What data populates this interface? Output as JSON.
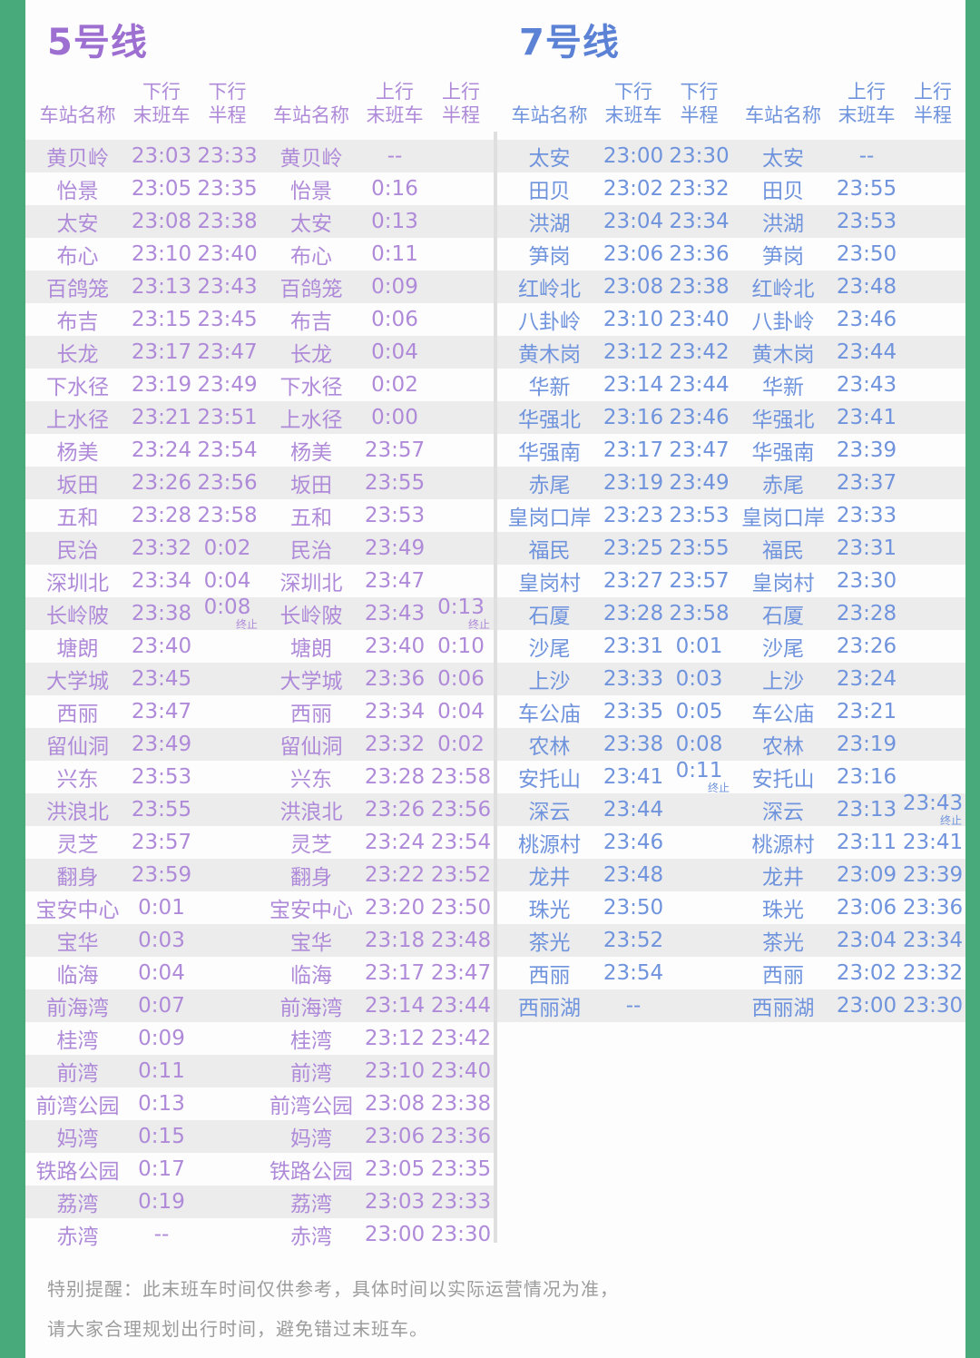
{
  "colors": {
    "frame_green": "#48a97a",
    "line5_title": "#9d6fd1",
    "line5_text": "#af8ad9",
    "line7_title": "#5c82d6",
    "line7_text": "#6f93dc",
    "stripe_gray": "#ececec",
    "divider_gray": "#dfdfdf",
    "footer_gray": "#9c9c9c"
  },
  "lines": [
    {
      "title": "5号线",
      "headers": {
        "station": "车站名称",
        "down": "下行",
        "up": "上行",
        "last": "末班车",
        "half": "半程"
      },
      "down_rows": [
        {
          "station": "黄贝岭",
          "last": "23:03",
          "half": "23:33"
        },
        {
          "station": "怡景",
          "last": "23:05",
          "half": "23:35"
        },
        {
          "station": "太安",
          "last": "23:08",
          "half": "23:38"
        },
        {
          "station": "布心",
          "last": "23:10",
          "half": "23:40"
        },
        {
          "station": "百鸽笼",
          "last": "23:13",
          "half": "23:43"
        },
        {
          "station": "布吉",
          "last": "23:15",
          "half": "23:45"
        },
        {
          "station": "长龙",
          "last": "23:17",
          "half": "23:47"
        },
        {
          "station": "下水径",
          "last": "23:19",
          "half": "23:49"
        },
        {
          "station": "上水径",
          "last": "23:21",
          "half": "23:51"
        },
        {
          "station": "杨美",
          "last": "23:24",
          "half": "23:54"
        },
        {
          "station": "坂田",
          "last": "23:26",
          "half": "23:56"
        },
        {
          "station": "五和",
          "last": "23:28",
          "half": "23:58"
        },
        {
          "station": "民治",
          "last": "23:32",
          "half": "0:02"
        },
        {
          "station": "深圳北",
          "last": "23:34",
          "half": "0:04"
        },
        {
          "station": "长岭陂",
          "last": "23:38",
          "half": "0:08",
          "half_note": "终止"
        },
        {
          "station": "塘朗",
          "last": "23:40",
          "half": ""
        },
        {
          "station": "大学城",
          "last": "23:45",
          "half": ""
        },
        {
          "station": "西丽",
          "last": "23:47",
          "half": ""
        },
        {
          "station": "留仙洞",
          "last": "23:49",
          "half": ""
        },
        {
          "station": "兴东",
          "last": "23:53",
          "half": ""
        },
        {
          "station": "洪浪北",
          "last": "23:55",
          "half": ""
        },
        {
          "station": "灵芝",
          "last": "23:57",
          "half": ""
        },
        {
          "station": "翻身",
          "last": "23:59",
          "half": ""
        },
        {
          "station": "宝安中心",
          "last": "0:01",
          "half": ""
        },
        {
          "station": "宝华",
          "last": "0:03",
          "half": ""
        },
        {
          "station": "临海",
          "last": "0:04",
          "half": ""
        },
        {
          "station": "前海湾",
          "last": "0:07",
          "half": ""
        },
        {
          "station": "桂湾",
          "last": "0:09",
          "half": ""
        },
        {
          "station": "前湾",
          "last": "0:11",
          "half": ""
        },
        {
          "station": "前湾公园",
          "last": "0:13",
          "half": ""
        },
        {
          "station": "妈湾",
          "last": "0:15",
          "half": ""
        },
        {
          "station": "铁路公园",
          "last": "0:17",
          "half": ""
        },
        {
          "station": "荔湾",
          "last": "0:19",
          "half": ""
        },
        {
          "station": "赤湾",
          "last": "--",
          "half": ""
        }
      ],
      "up_rows": [
        {
          "station": "黄贝岭",
          "last": "--",
          "half": ""
        },
        {
          "station": "怡景",
          "last": "0:16",
          "half": ""
        },
        {
          "station": "太安",
          "last": "0:13",
          "half": ""
        },
        {
          "station": "布心",
          "last": "0:11",
          "half": ""
        },
        {
          "station": "百鸽笼",
          "last": "0:09",
          "half": ""
        },
        {
          "station": "布吉",
          "last": "0:06",
          "half": ""
        },
        {
          "station": "长龙",
          "last": "0:04",
          "half": ""
        },
        {
          "station": "下水径",
          "last": "0:02",
          "half": ""
        },
        {
          "station": "上水径",
          "last": "0:00",
          "half": ""
        },
        {
          "station": "杨美",
          "last": "23:57",
          "half": ""
        },
        {
          "station": "坂田",
          "last": "23:55",
          "half": ""
        },
        {
          "station": "五和",
          "last": "23:53",
          "half": ""
        },
        {
          "station": "民治",
          "last": "23:49",
          "half": ""
        },
        {
          "station": "深圳北",
          "last": "23:47",
          "half": ""
        },
        {
          "station": "长岭陂",
          "last": "23:43",
          "half": "0:13",
          "half_note": "终止"
        },
        {
          "station": "塘朗",
          "last": "23:40",
          "half": "0:10"
        },
        {
          "station": "大学城",
          "last": "23:36",
          "half": "0:06"
        },
        {
          "station": "西丽",
          "last": "23:34",
          "half": "0:04"
        },
        {
          "station": "留仙洞",
          "last": "23:32",
          "half": "0:02"
        },
        {
          "station": "兴东",
          "last": "23:28",
          "half": "23:58"
        },
        {
          "station": "洪浪北",
          "last": "23:26",
          "half": "23:56"
        },
        {
          "station": "灵芝",
          "last": "23:24",
          "half": "23:54"
        },
        {
          "station": "翻身",
          "last": "23:22",
          "half": "23:52"
        },
        {
          "station": "宝安中心",
          "last": "23:20",
          "half": "23:50"
        },
        {
          "station": "宝华",
          "last": "23:18",
          "half": "23:48"
        },
        {
          "station": "临海",
          "last": "23:17",
          "half": "23:47"
        },
        {
          "station": "前海湾",
          "last": "23:14",
          "half": "23:44"
        },
        {
          "station": "桂湾",
          "last": "23:12",
          "half": "23:42"
        },
        {
          "station": "前湾",
          "last": "23:10",
          "half": "23:40"
        },
        {
          "station": "前湾公园",
          "last": "23:08",
          "half": "23:38"
        },
        {
          "station": "妈湾",
          "last": "23:06",
          "half": "23:36"
        },
        {
          "station": "铁路公园",
          "last": "23:05",
          "half": "23:35"
        },
        {
          "station": "荔湾",
          "last": "23:03",
          "half": "23:33"
        },
        {
          "station": "赤湾",
          "last": "23:00",
          "half": "23:30"
        }
      ]
    },
    {
      "title": "7号线",
      "headers": {
        "station": "车站名称",
        "down": "下行",
        "up": "上行",
        "last": "末班车",
        "half": "半程"
      },
      "down_rows": [
        {
          "station": "太安",
          "last": "23:00",
          "half": "23:30"
        },
        {
          "station": "田贝",
          "last": "23:02",
          "half": "23:32"
        },
        {
          "station": "洪湖",
          "last": "23:04",
          "half": "23:34"
        },
        {
          "station": "笋岗",
          "last": "23:06",
          "half": "23:36"
        },
        {
          "station": "红岭北",
          "last": "23:08",
          "half": "23:38"
        },
        {
          "station": "八卦岭",
          "last": "23:10",
          "half": "23:40"
        },
        {
          "station": "黄木岗",
          "last": "23:12",
          "half": "23:42"
        },
        {
          "station": "华新",
          "last": "23:14",
          "half": "23:44"
        },
        {
          "station": "华强北",
          "last": "23:16",
          "half": "23:46"
        },
        {
          "station": "华强南",
          "last": "23:17",
          "half": "23:47"
        },
        {
          "station": "赤尾",
          "last": "23:19",
          "half": "23:49"
        },
        {
          "station": "皇岗口岸",
          "last": "23:23",
          "half": "23:53"
        },
        {
          "station": "福民",
          "last": "23:25",
          "half": "23:55"
        },
        {
          "station": "皇岗村",
          "last": "23:27",
          "half": "23:57"
        },
        {
          "station": "石厦",
          "last": "23:28",
          "half": "23:58"
        },
        {
          "station": "沙尾",
          "last": "23:31",
          "half": "0:01"
        },
        {
          "station": "上沙",
          "last": "23:33",
          "half": "0:03"
        },
        {
          "station": "车公庙",
          "last": "23:35",
          "half": "0:05"
        },
        {
          "station": "农林",
          "last": "23:38",
          "half": "0:08"
        },
        {
          "station": "安托山",
          "last": "23:41",
          "half": "0:11",
          "half_note": "终止"
        },
        {
          "station": "深云",
          "last": "23:44",
          "half": ""
        },
        {
          "station": "桃源村",
          "last": "23:46",
          "half": ""
        },
        {
          "station": "龙井",
          "last": "23:48",
          "half": ""
        },
        {
          "station": "珠光",
          "last": "23:50",
          "half": ""
        },
        {
          "station": "茶光",
          "last": "23:52",
          "half": ""
        },
        {
          "station": "西丽",
          "last": "23:54",
          "half": ""
        },
        {
          "station": "西丽湖",
          "last": "--",
          "half": ""
        }
      ],
      "up_rows": [
        {
          "station": "太安",
          "last": "--",
          "half": ""
        },
        {
          "station": "田贝",
          "last": "23:55",
          "half": ""
        },
        {
          "station": "洪湖",
          "last": "23:53",
          "half": ""
        },
        {
          "station": "笋岗",
          "last": "23:50",
          "half": ""
        },
        {
          "station": "红岭北",
          "last": "23:48",
          "half": ""
        },
        {
          "station": "八卦岭",
          "last": "23:46",
          "half": ""
        },
        {
          "station": "黄木岗",
          "last": "23:44",
          "half": ""
        },
        {
          "station": "华新",
          "last": "23:43",
          "half": ""
        },
        {
          "station": "华强北",
          "last": "23:41",
          "half": ""
        },
        {
          "station": "华强南",
          "last": "23:39",
          "half": ""
        },
        {
          "station": "赤尾",
          "last": "23:37",
          "half": ""
        },
        {
          "station": "皇岗口岸",
          "last": "23:33",
          "half": ""
        },
        {
          "station": "福民",
          "last": "23:31",
          "half": ""
        },
        {
          "station": "皇岗村",
          "last": "23:30",
          "half": ""
        },
        {
          "station": "石厦",
          "last": "23:28",
          "half": ""
        },
        {
          "station": "沙尾",
          "last": "23:26",
          "half": ""
        },
        {
          "station": "上沙",
          "last": "23:24",
          "half": ""
        },
        {
          "station": "车公庙",
          "last": "23:21",
          "half": ""
        },
        {
          "station": "农林",
          "last": "23:19",
          "half": ""
        },
        {
          "station": "安托山",
          "last": "23:16",
          "half": ""
        },
        {
          "station": "深云",
          "last": "23:13",
          "half": "23:43",
          "half_note": "终止"
        },
        {
          "station": "桃源村",
          "last": "23:11",
          "half": "23:41"
        },
        {
          "station": "龙井",
          "last": "23:09",
          "half": "23:39"
        },
        {
          "station": "珠光",
          "last": "23:06",
          "half": "23:36"
        },
        {
          "station": "茶光",
          "last": "23:04",
          "half": "23:34"
        },
        {
          "station": "西丽",
          "last": "23:02",
          "half": "23:32"
        },
        {
          "station": "西丽湖",
          "last": "23:00",
          "half": "23:30"
        }
      ]
    }
  ],
  "footer": {
    "line1": "特别提醒：此末班车时间仅供参考，具体时间以实际运营情况为准，",
    "line2": "请大家合理规划出行时间，避免错过末班车。"
  }
}
